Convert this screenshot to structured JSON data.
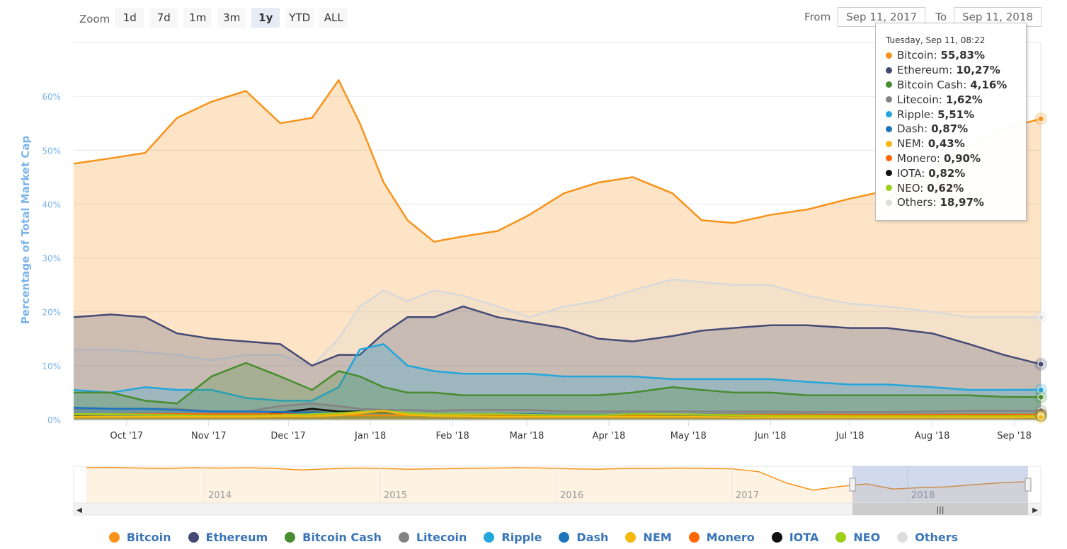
{
  "zoom": {
    "label": "Zoom",
    "buttons": [
      "1d",
      "7d",
      "1m",
      "3m",
      "1y",
      "YTD",
      "ALL"
    ],
    "active": "1y"
  },
  "range": {
    "from_label": "From",
    "from_value": "Sep 11, 2017",
    "to_label": "To",
    "to_value": "Sep 11, 2018"
  },
  "tooltip": {
    "date": "Tuesday, Sep 11, 08:22",
    "rows": [
      {
        "name": "Bitcoin",
        "value": "55,83%",
        "color": "#f7931a"
      },
      {
        "name": "Ethereum",
        "value": "10,27%",
        "color": "#454a75"
      },
      {
        "name": "Bitcoin Cash",
        "value": "4,16%",
        "color": "#478c2f"
      },
      {
        "name": "Litecoin",
        "value": "1,62%",
        "color": "#838383"
      },
      {
        "name": "Ripple",
        "value": "5,51%",
        "color": "#23a6dc"
      },
      {
        "name": "Dash",
        "value": "0,87%",
        "color": "#1c75bc"
      },
      {
        "name": "NEM",
        "value": "0,43%",
        "color": "#f6b70f"
      },
      {
        "name": "Monero",
        "value": "0,90%",
        "color": "#ff6600"
      },
      {
        "name": "IOTA",
        "value": "0,82%",
        "color": "#111111"
      },
      {
        "name": "NEO",
        "value": "0,62%",
        "color": "#9ecf1b"
      },
      {
        "name": "Others",
        "value": "18,97%",
        "color": "#dddddd"
      }
    ]
  },
  "navigator": {
    "year_labels": [
      "2014",
      "2015",
      "2016",
      "2017",
      "2018"
    ]
  },
  "chart_data": {
    "type": "area",
    "ylabel": "Percentage of Total Market Cap",
    "ylim": [
      0,
      70
    ],
    "yticks": [
      "0%",
      "10%",
      "20%",
      "30%",
      "40%",
      "50%",
      "60%"
    ],
    "xticks": [
      "Oct '17",
      "Nov '17",
      "Dec '17",
      "Jan '18",
      "Feb '18",
      "Mar '18",
      "Apr '18",
      "May '18",
      "Jun '18",
      "Jul '18",
      "Aug '18",
      "Sep '18"
    ],
    "x_dates": [
      "2017-09-11",
      "2017-09-25",
      "2017-10-08",
      "2017-10-20",
      "2017-11-02",
      "2017-11-15",
      "2017-11-28",
      "2017-12-10",
      "2017-12-20",
      "2017-12-28",
      "2018-01-06",
      "2018-01-15",
      "2018-01-25",
      "2018-02-05",
      "2018-02-18",
      "2018-03-02",
      "2018-03-15",
      "2018-03-28",
      "2018-04-10",
      "2018-04-25",
      "2018-05-06",
      "2018-05-18",
      "2018-06-01",
      "2018-06-15",
      "2018-07-01",
      "2018-07-15",
      "2018-08-01",
      "2018-08-15",
      "2018-08-28",
      "2018-09-11"
    ],
    "series": [
      {
        "name": "Bitcoin",
        "color": "#f7931a",
        "values": [
          47.5,
          48.5,
          49.5,
          56,
          59,
          61,
          55,
          56,
          63,
          55,
          44,
          37,
          33,
          34,
          35,
          38,
          42,
          44,
          45,
          42,
          37,
          36.5,
          38,
          39,
          41,
          42.5,
          46,
          51,
          54,
          55.83
        ]
      },
      {
        "name": "Others",
        "color": "#d9d9d9",
        "values": [
          13,
          13,
          12.5,
          12,
          11,
          12,
          12,
          10,
          15,
          21,
          24,
          22,
          24,
          23,
          21,
          19,
          21,
          22,
          24,
          26,
          25.5,
          25,
          25,
          23,
          21.5,
          21,
          20,
          19,
          19,
          18.97
        ]
      },
      {
        "name": "Ethereum",
        "color": "#454a75",
        "values": [
          19,
          19.5,
          19,
          16,
          15,
          14.5,
          14,
          10,
          12,
          12,
          16,
          19,
          19,
          21,
          19,
          18,
          17,
          15,
          14.5,
          15.5,
          16.5,
          17,
          17.5,
          17.5,
          17,
          17,
          16,
          14,
          12,
          10.27
        ]
      },
      {
        "name": "Ripple",
        "color": "#23a6dc",
        "values": [
          5.5,
          5,
          6,
          5.5,
          5.5,
          4,
          3.5,
          3.5,
          6,
          13,
          14,
          10,
          9,
          8.5,
          8.5,
          8.5,
          8,
          8,
          8,
          7.5,
          7.5,
          7.5,
          7.5,
          7,
          6.5,
          6.5,
          6,
          5.5,
          5.5,
          5.51
        ]
      },
      {
        "name": "Bitcoin Cash",
        "color": "#478c2f",
        "values": [
          5,
          5,
          3.5,
          3,
          8,
          10.5,
          8,
          5.5,
          9,
          8,
          6,
          5,
          5,
          4.5,
          4.5,
          4.5,
          4.5,
          4.5,
          5,
          6,
          5.5,
          5,
          5,
          4.5,
          4.5,
          4.5,
          4.5,
          4.5,
          4.2,
          4.16
        ]
      },
      {
        "name": "Litecoin",
        "color": "#838383",
        "values": [
          2,
          2,
          2,
          2,
          1.5,
          1.5,
          2.5,
          3,
          2.5,
          2,
          1.8,
          1.8,
          1.6,
          1.8,
          1.8,
          1.8,
          1.5,
          1.5,
          1.5,
          1.5,
          1.5,
          1.5,
          1.5,
          1.4,
          1.4,
          1.4,
          1.5,
          1.6,
          1.6,
          1.62
        ]
      },
      {
        "name": "IOTA",
        "color": "#111111",
        "values": [
          0.6,
          0.5,
          0.5,
          0.5,
          0.5,
          0.5,
          1.3,
          2,
          1.5,
          1.5,
          1.2,
          1,
          1,
          0.9,
          0.8,
          0.8,
          0.7,
          0.8,
          1,
          0.9,
          0.9,
          0.9,
          0.9,
          0.9,
          0.8,
          0.8,
          0.8,
          0.8,
          0.8,
          0.82
        ]
      },
      {
        "name": "Dash",
        "color": "#1c75bc",
        "values": [
          2.2,
          2,
          2,
          1.8,
          1.5,
          1.5,
          1.4,
          1.3,
          1.2,
          1,
          1,
          1,
          1,
          1,
          1,
          1,
          0.9,
          0.9,
          0.9,
          0.9,
          0.9,
          0.9,
          0.9,
          0.9,
          0.9,
          0.9,
          0.9,
          0.9,
          0.9,
          0.87
        ]
      },
      {
        "name": "Monero",
        "color": "#ff6600",
        "values": [
          1,
          1,
          1,
          1,
          1,
          1,
          1,
          0.9,
          0.9,
          0.8,
          0.8,
          0.8,
          0.8,
          0.8,
          0.8,
          0.8,
          0.8,
          0.8,
          0.8,
          0.9,
          0.9,
          0.9,
          0.9,
          0.9,
          0.9,
          0.9,
          0.9,
          0.9,
          0.9,
          0.9
        ]
      },
      {
        "name": "NEO",
        "color": "#9ecf1b",
        "values": [
          1,
          1,
          0.9,
          0.8,
          0.7,
          0.7,
          0.8,
          1,
          1.2,
          1.4,
          1.6,
          1.2,
          1,
          1,
          1,
          0.9,
          0.8,
          0.8,
          1,
          1,
          0.9,
          0.8,
          0.7,
          0.7,
          0.6,
          0.6,
          0.6,
          0.6,
          0.6,
          0.62
        ]
      },
      {
        "name": "NEM",
        "color": "#f6b70f",
        "values": [
          0.5,
          0.5,
          0.5,
          0.5,
          0.5,
          0.5,
          0.6,
          0.6,
          0.8,
          1.2,
          1.6,
          0.9,
          0.7,
          0.6,
          0.5,
          0.5,
          0.5,
          0.5,
          0.5,
          0.5,
          0.5,
          0.4,
          0.4,
          0.4,
          0.4,
          0.4,
          0.4,
          0.4,
          0.4,
          0.43
        ]
      }
    ],
    "navigator_values": [
      96,
      97,
      95,
      94,
      96,
      95,
      96,
      94,
      90,
      93,
      95,
      94,
      92,
      93,
      94,
      95,
      96,
      95,
      93,
      92,
      94,
      94,
      95,
      94,
      93,
      85,
      55,
      35,
      45,
      52,
      38,
      42,
      44,
      50,
      55,
      58
    ]
  },
  "legend": {
    "items": [
      {
        "name": "Bitcoin",
        "color": "#f7931a"
      },
      {
        "name": "Ethereum",
        "color": "#454a75"
      },
      {
        "name": "Bitcoin Cash",
        "color": "#478c2f"
      },
      {
        "name": "Litecoin",
        "color": "#838383"
      },
      {
        "name": "Ripple",
        "color": "#23a6dc"
      },
      {
        "name": "Dash",
        "color": "#1c75bc"
      },
      {
        "name": "NEM",
        "color": "#f6b70f"
      },
      {
        "name": "Monero",
        "color": "#ff6600"
      },
      {
        "name": "IOTA",
        "color": "#111111"
      },
      {
        "name": "NEO",
        "color": "#9ecf1b"
      },
      {
        "name": "Others",
        "color": "#dddddd"
      }
    ]
  }
}
